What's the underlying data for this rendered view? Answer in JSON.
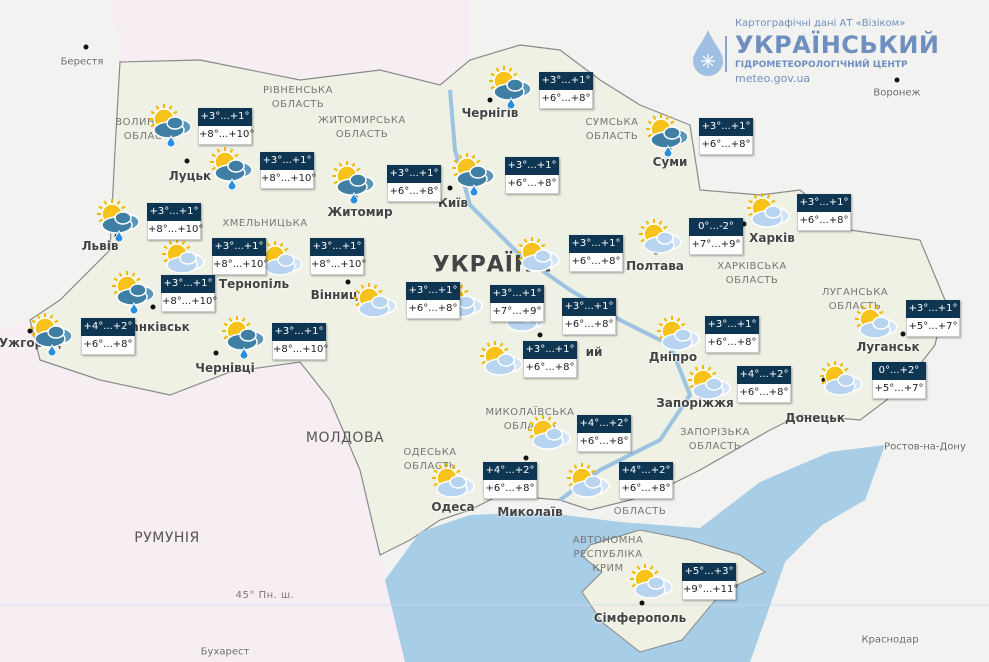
{
  "header": {
    "credit": "Картографічні дані АТ «Візіком»",
    "title": "УКРАЇНСЬКИЙ",
    "subtitle": "ГІДРОМЕТЕОРОЛОГІЧНИЙ ЦЕНТР",
    "url": "meteo.gov.ua",
    "logo_icon": "water-drop-snowflake-icon"
  },
  "colors": {
    "night_bar": "#0e3551",
    "sea": "#a8cde6",
    "land": "#f2f2f0",
    "neighbor_pink": "#f6eef3",
    "sun": "#f5b800",
    "cloud_light": "#b9d4f0",
    "cloud_rain": "#3f7fa3",
    "logo": "#6e8fbf"
  },
  "map_labels": {
    "country": "УКРАЇНА",
    "moldova": "МОЛДОВА",
    "romania": "РУМУНІЯ",
    "cities": {
      "berestia": "Берестя",
      "voronezh": "Воронеж",
      "lutsk": "Луцьк",
      "zhytomyr": "Житомир",
      "kyiv": "Київ",
      "chernihiv": "Чернігів",
      "sumy": "Суми",
      "lviv": "Львів",
      "ternopil": "Тернопіль",
      "vinnytsia": "Вінниця",
      "frankivsk": "Франківськ",
      "uzhhorod": "Ужгород",
      "chernivtsi": "Чернівці",
      "poltava": "Полтава",
      "kharkiv": "Харків",
      "dnipro": "Дніпро",
      "zaporizhzhia": "Запоріжжя",
      "donetsk": "Донецьк",
      "luhansk": "Луганськ",
      "mykolaiv": "Миколаїв",
      "odesa": "Одеса",
      "simferopol": "Сімферополь",
      "kropyvnytskyi": "ий",
      "rostov": "Ростов-на-Дону",
      "krasnodar": "Краснодар",
      "bucharest": "Бухарест"
    },
    "regions": {
      "volyn": "ВОЛИНСЬКА\nОБЛАСТЬ",
      "rivne": "РІВНЕНСЬКА\nОБЛАСТЬ",
      "zhytomyr": "ЖИТОМИРСЬКА\nОБЛАСТЬ",
      "khmelnytskyi": "ХМЕЛЬНИЦЬКА",
      "sumy": "СУМСЬКА\nОБЛАСТЬ",
      "kharkiv": "ХАРКІВСЬКА\nОБЛАСТЬ",
      "luhansk": "ЛУГАНСЬКА\nОБЛАСТЬ",
      "zaporizhzhia": "ЗАПОРІЗЬКА\nОБЛАСТЬ",
      "mykolaiv": "МИКОЛАЇВСЬКА\nОБЛАСТЬ",
      "odesa": "ОДЕСЬКА\nОБЛАСТЬ",
      "kherson": "ОБЛАСТЬ",
      "crimea": "АВТОНОМНА\nРЕСПУБЛІКА\nКРИМ"
    },
    "parallel": "45° Пн. ш."
  },
  "forecasts": [
    {
      "night": "+3°...+1°",
      "day": "+8°...+10°",
      "icon": "sun-cloud-rain-icon"
    },
    {
      "night": "+3°...+1°",
      "day": "+8°...+10°",
      "icon": "sun-cloud-rain-icon"
    },
    {
      "night": "+3°...+1°",
      "day": "+6°...+8°",
      "icon": "sun-cloud-rain-icon"
    },
    {
      "night": "+3°...+1°",
      "day": "+6°...+8°",
      "icon": "sun-cloud-rain-icon"
    },
    {
      "night": "+3°...+1°",
      "day": "+6°...+8°",
      "icon": "sun-cloud-rain-icon"
    },
    {
      "night": "+3°...+1°",
      "day": "+6°...+8°",
      "icon": "sun-cloud-rain-icon"
    },
    {
      "night": "+3°...+1°",
      "day": "+8°...+10°",
      "icon": "sun-cloud-rain-icon"
    },
    {
      "night": "+3°...+1°",
      "day": "+8°...+10°",
      "icon": "partly-cloudy-icon"
    },
    {
      "night": "+3°...+1°",
      "day": "+8°...+10°",
      "icon": "partly-cloudy-icon"
    },
    {
      "night": "+3°...+1°",
      "day": "+8°...+10°",
      "icon": "sun-cloud-rain-icon"
    },
    {
      "night": "+4°...+2°",
      "day": "+6°...+8°",
      "icon": "sun-cloud-rain-icon"
    },
    {
      "night": "+3°...+1°",
      "day": "+8°...+10°",
      "icon": "sun-cloud-rain-icon"
    },
    {
      "night": "+3°...+1°",
      "day": "+6°...+8°",
      "icon": "partly-cloudy-icon"
    },
    {
      "night": "+3°...+1°",
      "day": "+7°...+9°",
      "icon": "partly-cloudy-icon"
    },
    {
      "night": "+3°...+1°",
      "day": "+6°...+8°",
      "icon": "partly-cloudy-icon"
    },
    {
      "night": "0°...-2°",
      "day": "+7°...+9°",
      "icon": "partly-cloudy-icon"
    },
    {
      "night": "+3°...+1°",
      "day": "+6°...+8°",
      "icon": "partly-cloudy-icon"
    },
    {
      "night": "+3°...+1°",
      "day": "+6°...+8°",
      "icon": "partly-cloudy-icon"
    },
    {
      "night": "+3°...+1°",
      "day": "+6°...+8°",
      "icon": "partly-cloudy-icon"
    },
    {
      "night": "+3°...+1°",
      "day": "+6°...+8°",
      "icon": "partly-cloudy-icon"
    },
    {
      "night": "+4°...+2°",
      "day": "+6°...+8°",
      "icon": "partly-cloudy-icon"
    },
    {
      "night": "+3°...+1°",
      "day": "+5°...+7°",
      "icon": "partly-cloudy-icon"
    },
    {
      "night": "0°...+2°",
      "day": "+5°...+7°",
      "icon": "partly-cloudy-icon"
    },
    {
      "night": "+4°...+2°",
      "day": "+6°...+8°",
      "icon": "partly-cloudy-icon"
    },
    {
      "night": "+4°...+2°",
      "day": "+6°...+8°",
      "icon": "partly-cloudy-icon"
    },
    {
      "night": "+4°...+2°",
      "day": "+6°...+8°",
      "icon": "partly-cloudy-icon"
    },
    {
      "night": "+5°...+3°",
      "day": "+9°...+11°",
      "icon": "partly-cloudy-icon"
    }
  ]
}
